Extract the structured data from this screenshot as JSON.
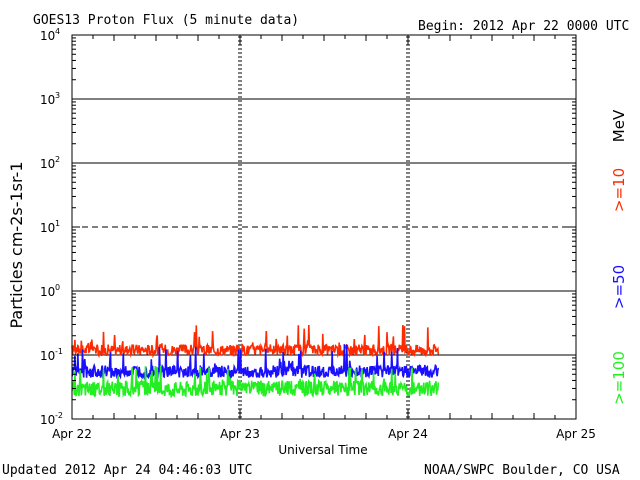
{
  "header": {
    "title": "GOES13 Proton Flux (5 minute data)",
    "begin": "Begin: 2012 Apr 22 0000 UTC"
  },
  "footer": {
    "updated": "Updated 2012 Apr 24 04:46:03 UTC",
    "credit": "NOAA/SWPC Boulder, CO USA"
  },
  "chart_data": {
    "type": "line",
    "title": "GOES13 Proton Flux (5 minute data)",
    "xlabel": "Universal Time",
    "ylabel": "Particles cm-2s-1sr-1",
    "y_scale": "log",
    "ylim": [
      0.01,
      10000
    ],
    "y_ticks": [
      {
        "base": "10",
        "exp": "4"
      },
      {
        "base": "10",
        "exp": "3"
      },
      {
        "base": "10",
        "exp": "2"
      },
      {
        "base": "10",
        "exp": "1"
      },
      {
        "base": "10",
        "exp": "0"
      },
      {
        "base": "10",
        "exp": "-1"
      },
      {
        "base": "10",
        "exp": "-2"
      }
    ],
    "x_ticks": [
      "Apr 22",
      "Apr 23",
      "Apr 24",
      "Apr 25"
    ],
    "xlim_days": [
      0,
      3
    ],
    "data_end_day": 2.18,
    "grid": true,
    "legend_placement": "right",
    "legend_unit": "MeV",
    "series": [
      {
        "name": ">=10",
        "color": "#ff2a00",
        "typical": 0.12,
        "min": 0.09,
        "max": 0.3
      },
      {
        "name": ">=50",
        "color": "#1a10ff",
        "typical": 0.055,
        "min": 0.04,
        "max": 0.15
      },
      {
        "name": ">=100",
        "color": "#22ee22",
        "typical": 0.03,
        "min": 0.02,
        "max": 0.07
      }
    ]
  }
}
